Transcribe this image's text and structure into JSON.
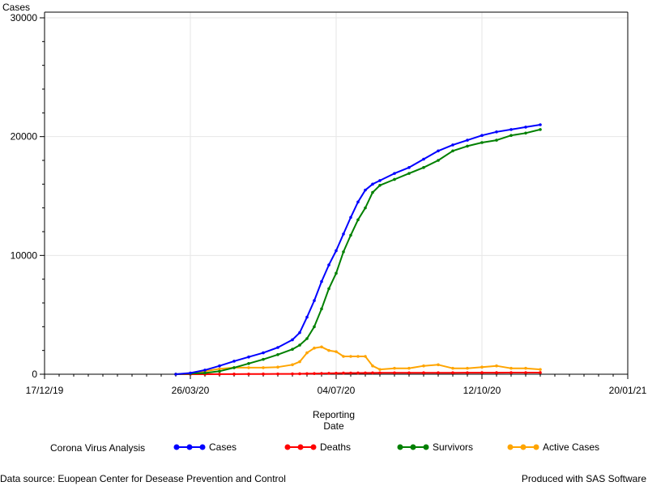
{
  "chart_data": {
    "type": "line",
    "title": "",
    "ylabel": "Cases",
    "xlabel_line1": "Reporting",
    "xlabel_line2": "Date",
    "ylim": [
      0,
      30000
    ],
    "yticks": [
      {
        "value": 0,
        "label": "0"
      },
      {
        "value": 10000,
        "label": "10000"
      },
      {
        "value": 20000,
        "label": "20000"
      },
      {
        "value": 30000,
        "label": "30000"
      }
    ],
    "xlim": [
      "2019-12-17",
      "2021-01-20"
    ],
    "xticks": [
      {
        "date": "2019-12-17",
        "label": "17/12/19"
      },
      {
        "date": "2020-03-26",
        "label": "26/03/20"
      },
      {
        "date": "2020-07-04",
        "label": "04/07/20"
      },
      {
        "date": "2020-10-12",
        "label": "12/10/20"
      },
      {
        "date": "2021-01-20",
        "label": "20/01/21"
      }
    ],
    "grid": true,
    "legend_title": "Corona Virus Analysis",
    "legend_position": "bottom",
    "x": [
      "2020-03-16",
      "2020-03-26",
      "2020-04-05",
      "2020-04-15",
      "2020-04-25",
      "2020-05-05",
      "2020-05-15",
      "2020-05-25",
      "2020-06-04",
      "2020-06-09",
      "2020-06-14",
      "2020-06-19",
      "2020-06-24",
      "2020-06-29",
      "2020-07-04",
      "2020-07-09",
      "2020-07-14",
      "2020-07-19",
      "2020-07-24",
      "2020-07-29",
      "2020-08-03",
      "2020-08-13",
      "2020-08-23",
      "2020-09-02",
      "2020-09-12",
      "2020-09-22",
      "2020-10-02",
      "2020-10-12",
      "2020-10-22",
      "2020-11-01",
      "2020-11-11",
      "2020-11-21"
    ],
    "series": [
      {
        "name": "Cases",
        "color": "#0000ff",
        "values": [
          0,
          100,
          350,
          700,
          1100,
          1450,
          1800,
          2250,
          2900,
          3500,
          4800,
          6200,
          7800,
          9200,
          10400,
          11800,
          13200,
          14500,
          15500,
          16000,
          16300,
          16900,
          17400,
          18100,
          18800,
          19300,
          19700,
          20100,
          20400,
          20600,
          20800,
          21000
        ]
      },
      {
        "name": "Deaths",
        "color": "#ff0000",
        "values": [
          0,
          0,
          0,
          5,
          10,
          15,
          20,
          25,
          30,
          35,
          45,
          55,
          65,
          75,
          85,
          95,
          100,
          105,
          110,
          112,
          115,
          118,
          120,
          122,
          124,
          126,
          128,
          130,
          132,
          134,
          136,
          138
        ]
      },
      {
        "name": "Survivors",
        "color": "#008000",
        "values": [
          0,
          50,
          100,
          250,
          550,
          900,
          1250,
          1650,
          2100,
          2450,
          3000,
          4000,
          5500,
          7200,
          8500,
          10300,
          11700,
          13000,
          14000,
          15300,
          15900,
          16400,
          16900,
          17400,
          18000,
          18800,
          19200,
          19500,
          19700,
          20100,
          20300,
          20600
        ]
      },
      {
        "name": "Active Cases",
        "color": "#ffa500",
        "values": [
          0,
          50,
          250,
          450,
          550,
          550,
          550,
          600,
          800,
          1050,
          1800,
          2200,
          2300,
          2000,
          1900,
          1500,
          1500,
          1500,
          1500,
          700,
          400,
          500,
          500,
          700,
          800,
          500,
          500,
          600,
          700,
          500,
          500,
          400
        ]
      }
    ]
  },
  "footer": {
    "left": "Data source: Euopean Center for Desease Prevention and Control",
    "right": "Produced with SAS Software"
  }
}
